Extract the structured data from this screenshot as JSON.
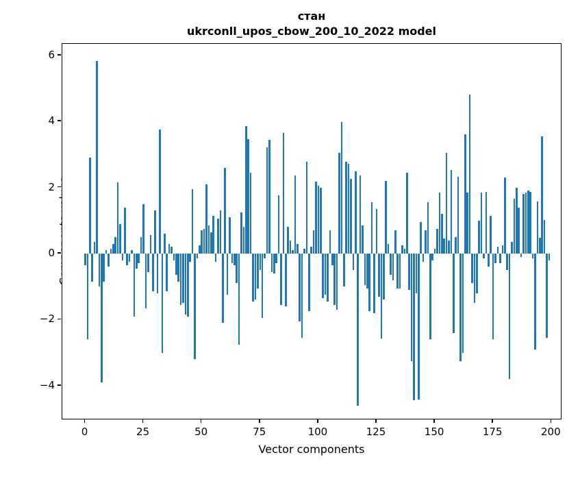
{
  "chart_data": {
    "type": "bar",
    "title": "стан",
    "subtitle": "ukrconll_upos_cbow_200_10_2022 model",
    "xlabel": "Vector components",
    "ylabel": "Components values",
    "bar_color": "#1f77b4",
    "background_color": "#ffffff",
    "grid": false,
    "legend": false,
    "x_tick_values": [
      0,
      25,
      50,
      75,
      100,
      125,
      150,
      175,
      200
    ],
    "x_tick_labels": [
      "0",
      "25",
      "50",
      "75",
      "100",
      "125",
      "150",
      "175",
      "200"
    ],
    "y_tick_values": [
      6,
      4,
      2,
      0,
      -2,
      -4
    ],
    "y_tick_labels": [
      "6",
      "4",
      "2",
      "0",
      "−2",
      "−4"
    ],
    "xlim": [
      -9.8,
      204.7
    ],
    "ylim": [
      -5.04,
      6.35
    ],
    "n_components": 200,
    "values": [
      -0.35,
      -2.6,
      2.9,
      -0.85,
      0.35,
      5.82,
      -1.0,
      -3.9,
      -0.85,
      0.1,
      -0.4,
      0.15,
      0.3,
      0.5,
      2.15,
      0.9,
      -0.2,
      1.4,
      -0.35,
      -0.25,
      0.1,
      -1.9,
      -0.45,
      -0.3,
      0.5,
      1.5,
      -1.65,
      -0.55,
      0.55,
      -1.15,
      1.3,
      -1.2,
      3.75,
      -3.0,
      0.6,
      -1.15,
      0.3,
      0.2,
      -0.2,
      -0.65,
      -0.85,
      -1.55,
      -1.5,
      -1.85,
      -1.9,
      -0.25,
      1.95,
      -3.2,
      -0.15,
      0.25,
      0.7,
      0.75,
      2.1,
      0.85,
      0.65,
      1.15,
      -0.25,
      1.05,
      1.3,
      -2.1,
      2.6,
      -1.25,
      1.1,
      -0.3,
      -0.35,
      -0.9,
      -2.75,
      1.25,
      0.8,
      3.85,
      3.47,
      2.45,
      -1.45,
      -1.4,
      -1.05,
      -0.5,
      -1.95,
      -0.15,
      3.22,
      3.45,
      -0.55,
      -0.6,
      -0.3,
      1.76,
      -1.55,
      3.66,
      -1.6,
      0.8,
      0.4,
      0.1,
      2.36,
      0.3,
      -2.05,
      -2.55,
      0.15,
      2.78,
      -1.75,
      0.2,
      0.7,
      2.17,
      2.05,
      2.0,
      -1.35,
      -1.25,
      -1.45,
      0.7,
      -0.35,
      -1.55,
      -1.7,
      3.04,
      3.99,
      -1.0,
      2.79,
      2.71,
      2.26,
      -0.5,
      2.5,
      -4.6,
      2.36,
      0.85,
      -0.95,
      -1.05,
      -1.75,
      1.55,
      -1.8,
      1.35,
      -1.3,
      -2.57,
      -1.4,
      2.2,
      0.3,
      -0.65,
      -0.8,
      0.7,
      -1.05,
      -1.05,
      0.25,
      0.15,
      2.45,
      -1.1,
      -3.25,
      -4.45,
      -1.2,
      -4.41,
      0.95,
      -0.25,
      0.7,
      1.55,
      -2.6,
      -0.2,
      0.15,
      0.75,
      1.85,
      1.2,
      0.45,
      3.04,
      0.4,
      2.54,
      -2.4,
      0.5,
      2.33,
      -3.25,
      -3.0,
      3.61,
      1.85,
      4.82,
      -0.9,
      -1.5,
      -1.2,
      1.0,
      1.85,
      -0.15,
      1.86,
      -0.4,
      1.15,
      -2.6,
      -0.3,
      0.2,
      -0.3,
      0.25,
      2.3,
      -0.5,
      -3.79,
      0.35,
      1.67,
      1.99,
      1.4,
      -0.1,
      1.8,
      1.85,
      1.91,
      1.87,
      -0.15,
      -2.91,
      1.58,
      0.48,
      3.55,
      1.02,
      -2.55,
      -0.2
    ]
  }
}
